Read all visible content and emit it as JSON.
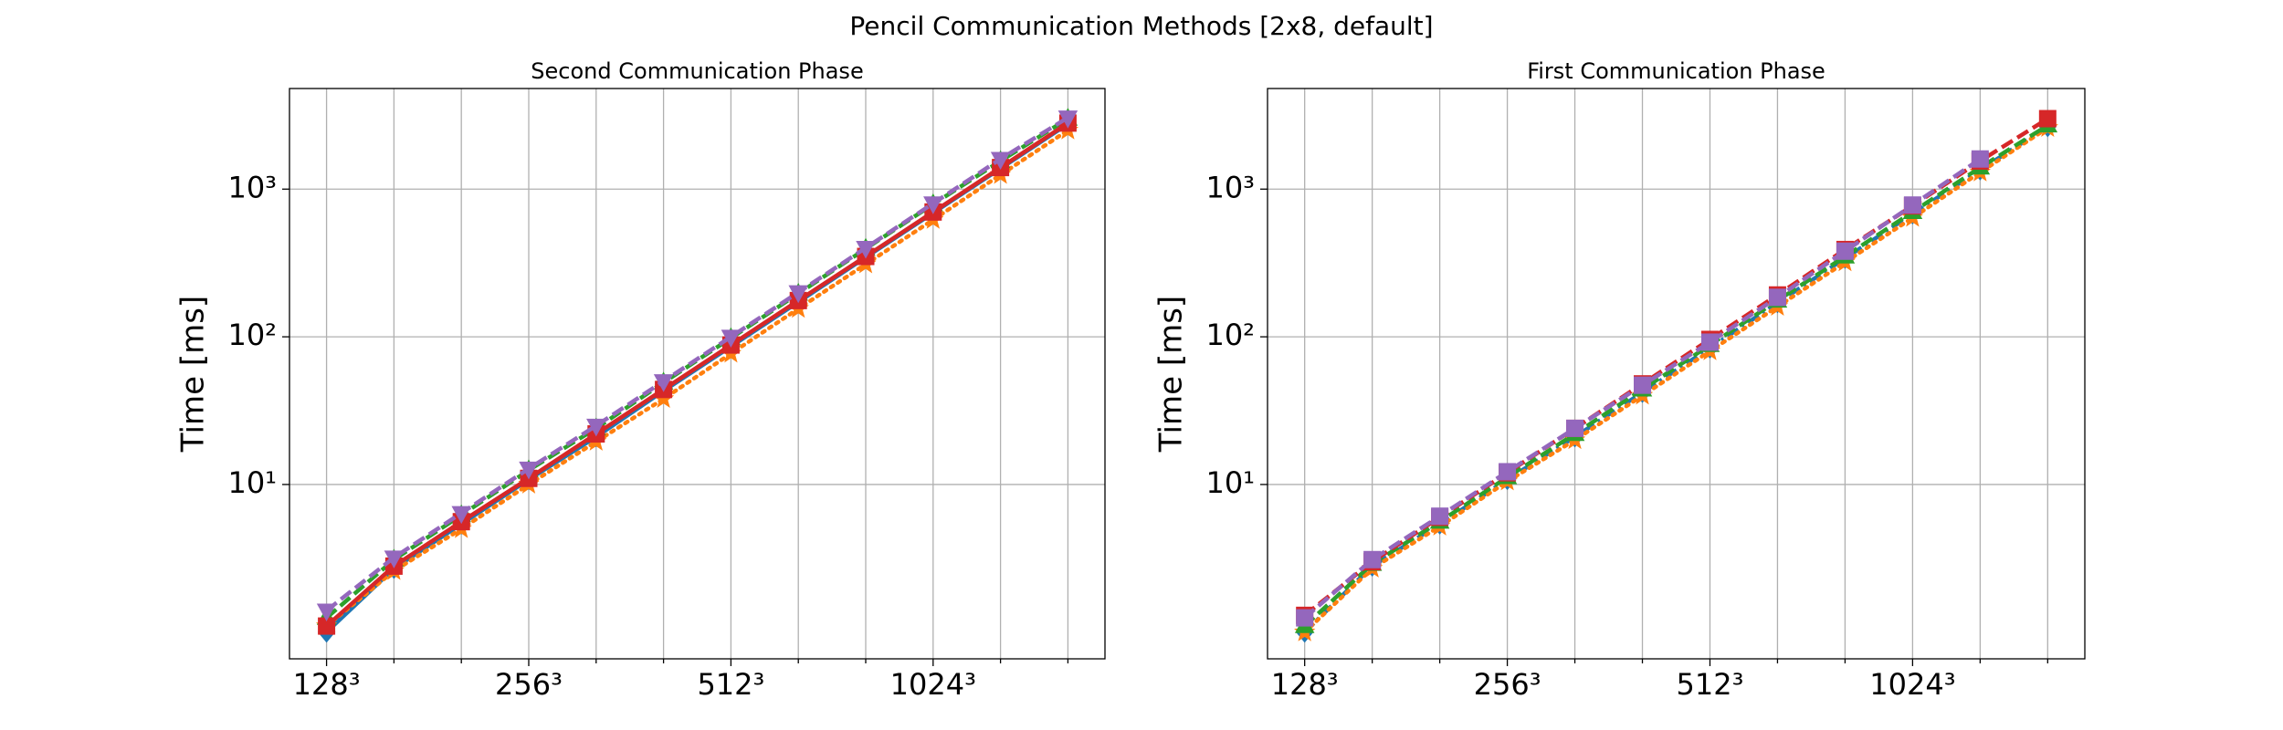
{
  "title": "Pencil Communication Methods [2x8, default]",
  "chart_data": [
    {
      "type": "line",
      "title": "Second Communication Phase",
      "ylabel": "Time [ms]",
      "yscale": "log",
      "grid": true,
      "categories": [
        "128³",
        null,
        null,
        "256³",
        null,
        null,
        "512³",
        null,
        null,
        "1024³",
        null,
        null
      ],
      "ylim": [
        0.66,
        4800
      ],
      "yticks": [
        {
          "value": 10,
          "label": "10¹"
        },
        {
          "value": 100,
          "label": "10²"
        },
        {
          "value": 1000,
          "label": "10³"
        }
      ],
      "series": [
        {
          "color": "#1f77b4",
          "linestyle": "solid",
          "marker": "diamond",
          "values": [
            1.0,
            2.7,
            5.4,
            10.8,
            21,
            43,
            86,
            172,
            345,
            690,
            1380,
            2760
          ]
        },
        {
          "color": "#ff7f0e",
          "linestyle": "dotted",
          "marker": "star",
          "values": [
            1.1,
            2.6,
            5.0,
            10,
            19.5,
            38,
            77,
            155,
            310,
            620,
            1250,
            2500
          ]
        },
        {
          "color": "#2ca02c",
          "linestyle": "dashed",
          "marker": "triangle-up",
          "values": [
            1.25,
            3.1,
            6.2,
            12.5,
            24,
            49,
            98,
            196,
            395,
            790,
            1550,
            3000
          ]
        },
        {
          "color": "#d62728",
          "linestyle": "solid",
          "marker": "square",
          "values": [
            1.1,
            2.8,
            5.6,
            11,
            22,
            44,
            88,
            176,
            350,
            700,
            1400,
            2800
          ]
        },
        {
          "color": "#9467bd",
          "linestyle": "dashed",
          "marker": "triangle-down",
          "values": [
            1.4,
            3.2,
            6.4,
            12.8,
            25,
            50,
            100,
            200,
            400,
            800,
            1600,
            3050
          ]
        }
      ]
    },
    {
      "type": "line",
      "title": "First Communication Phase",
      "ylabel": "Time [ms]",
      "yscale": "log",
      "grid": true,
      "categories": [
        "128³",
        null,
        null,
        "256³",
        null,
        null,
        "512³",
        null,
        null,
        "1024³",
        null,
        null
      ],
      "ylim": [
        0.66,
        4800
      ],
      "yticks": [
        {
          "value": 10,
          "label": "10¹"
        },
        {
          "value": 100,
          "label": "10²"
        },
        {
          "value": 1000,
          "label": "10³"
        }
      ],
      "series": [
        {
          "color": "#1f77b4",
          "linestyle": "dashdot",
          "marker": "diamond",
          "values": [
            1.0,
            2.8,
            5.4,
            10.8,
            21,
            42,
            84,
            170,
            340,
            680,
            1350,
            2650
          ]
        },
        {
          "color": "#ff7f0e",
          "linestyle": "dotted",
          "marker": "star",
          "values": [
            1.0,
            2.7,
            5.2,
            10.5,
            20,
            40,
            80,
            160,
            320,
            640,
            1300,
            2600
          ]
        },
        {
          "color": "#2ca02c",
          "linestyle": "dashed",
          "marker": "triangle-up",
          "values": [
            1.1,
            2.9,
            5.6,
            11.2,
            22,
            44,
            88,
            176,
            350,
            700,
            1400,
            2700
          ]
        },
        {
          "color": "#d62728",
          "linestyle": "dashed",
          "marker": "square",
          "values": [
            1.3,
            3.0,
            6.0,
            12,
            24,
            48,
            96,
            192,
            390,
            770,
            1550,
            3000
          ]
        },
        {
          "color": "#9467bd",
          "linestyle": "dashed",
          "marker": "square",
          "values": [
            1.25,
            3.1,
            6.1,
            12.2,
            24,
            47,
            92,
            185,
            380,
            780,
            1600,
            null
          ]
        }
      ]
    }
  ]
}
